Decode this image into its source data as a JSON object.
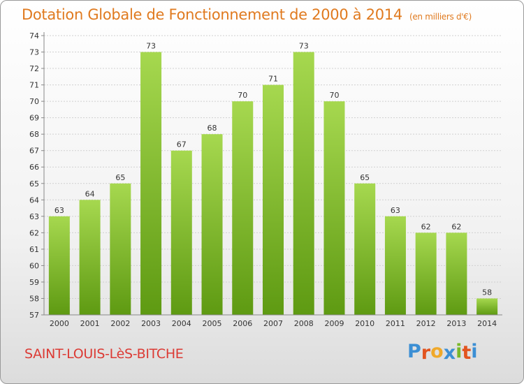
{
  "header": {
    "title": "Dotation Globale de Fonctionnement de 2000 à 2014",
    "unit": "(en milliers d'€)"
  },
  "footer": {
    "commune": "SAINT-LOUIS-LèS-BITCHE",
    "logo": {
      "letters": [
        "P",
        "r",
        "o",
        "x",
        "i",
        "t",
        "i"
      ],
      "colors": [
        "#3c8fd4",
        "#e2541f",
        "#f0a92a",
        "#3c8fd4",
        "#79b829",
        "#e2541f",
        "#3c8fd4"
      ]
    }
  },
  "colors": {
    "bar_top": "#a6d84f",
    "bar_bottom": "#5e9a12",
    "gridline": "#d0d0d0",
    "axis": "#888888",
    "title": "#e07a1f",
    "commune": "#dc3a34"
  },
  "chart_data": {
    "type": "bar",
    "title": "Dotation Globale de Fonctionnement de 2000 à 2014",
    "subtitle": "(en milliers d'€)",
    "categories": [
      "2000",
      "2001",
      "2002",
      "2003",
      "2004",
      "2005",
      "2006",
      "2007",
      "2008",
      "2009",
      "2010",
      "2011",
      "2012",
      "2013",
      "2014"
    ],
    "values": [
      63,
      64,
      65,
      73,
      67,
      68,
      70,
      71,
      73,
      70,
      65,
      63,
      62,
      62,
      58
    ],
    "data_labels": [
      "63",
      "64",
      "65",
      "73",
      "67",
      "68",
      "70",
      "71",
      "73",
      "70",
      "65",
      "63",
      "62",
      "62",
      "58"
    ],
    "ylim": [
      57,
      74
    ],
    "yticks": [
      "57",
      "58",
      "59",
      "60",
      "61",
      "62",
      "63",
      "64",
      "65",
      "66",
      "67",
      "68",
      "69",
      "70",
      "71",
      "72",
      "73",
      "74"
    ],
    "grid": true,
    "legend": "none"
  }
}
